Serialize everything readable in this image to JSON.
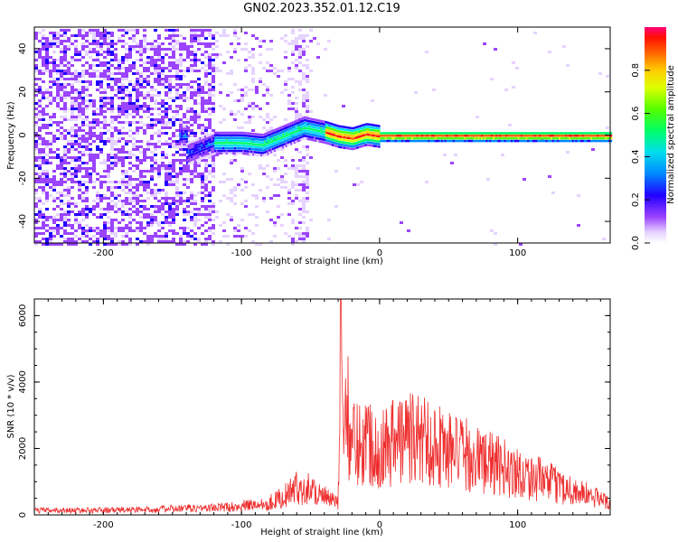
{
  "title": "GN02.2023.352.01.12.C19",
  "colors": {
    "snr_line": "#ee2e2e",
    "frame": "#000000"
  },
  "chart_data": [
    {
      "type": "heatmap",
      "xlabel": "Height of straight line (km)",
      "ylabel": "Frequency (Hz)",
      "xlim": [
        -250,
        167
      ],
      "ylim": [
        -50,
        50
      ],
      "xticks": [
        -200,
        -100,
        0,
        100
      ],
      "yticks": [
        40,
        20,
        0,
        -20,
        -40
      ],
      "colorbar": {
        "label": "Normalized spectral amplitude",
        "range": [
          0,
          1
        ],
        "ticks": [
          0.0,
          0.2,
          0.4,
          0.6,
          0.8
        ],
        "colormap": "rainbow"
      },
      "ridge": [
        {
          "x": -140,
          "y": -8
        },
        {
          "x": -120,
          "y": -3
        },
        {
          "x": -100,
          "y": -3
        },
        {
          "x": -85,
          "y": -4
        },
        {
          "x": -70,
          "y": 0
        },
        {
          "x": -55,
          "y": 4
        },
        {
          "x": -40,
          "y": 2
        },
        {
          "x": -30,
          "y": 0
        },
        {
          "x": -20,
          "y": -1
        },
        {
          "x": -10,
          "y": 1
        },
        {
          "x": 0,
          "y": 0
        },
        {
          "x": 167,
          "y": 0
        }
      ]
    },
    {
      "type": "line",
      "xlabel": "Height of straight line (km)",
      "ylabel": "SNR (10 * v/v)",
      "xlim": [
        -250,
        167
      ],
      "ylim": [
        0,
        6500
      ],
      "xticks": [
        -200,
        -100,
        0,
        100
      ],
      "yticks": [
        0,
        2000,
        4000,
        6000
      ],
      "series": [
        {
          "x": [
            -250,
            -220,
            -190,
            -160,
            -130,
            -110,
            -90,
            -80,
            -70,
            -60,
            -50,
            -40,
            -30,
            -28,
            -20,
            -10,
            0,
            10,
            20,
            30,
            40,
            50,
            60,
            70,
            80,
            90,
            100,
            110,
            120,
            130,
            140,
            150,
            160,
            167
          ],
          "y": [
            200,
            200,
            220,
            250,
            300,
            350,
            450,
            550,
            800,
            1200,
            1200,
            800,
            500,
            6500,
            3200,
            3400,
            3000,
            3300,
            3500,
            3400,
            3200,
            2900,
            2700,
            2500,
            2300,
            2100,
            1900,
            1700,
            1500,
            1300,
            1100,
            900,
            700,
            600
          ]
        }
      ]
    }
  ]
}
